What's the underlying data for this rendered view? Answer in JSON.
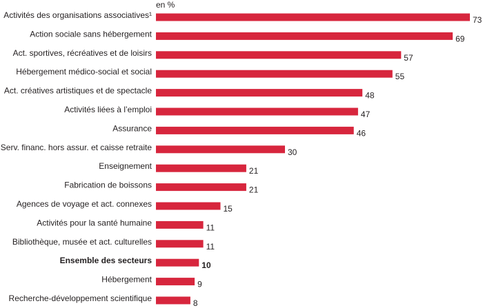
{
  "chart_data": {
    "type": "bar",
    "orientation": "horizontal",
    "unit_label": "en %",
    "bar_color": "#d7263d",
    "categories": [
      "Activités des organisations associatives¹",
      "Action sociale sans hébergement",
      "Act. sportives, récréatives et de loisirs",
      "Hébergement médico-social et social",
      "Act. créatives artistiques et de spectacle",
      "Activités liées à l’emploi",
      "Assurance",
      "Serv. financ. hors assur. et caisse retraite",
      "Enseignement",
      "Fabrication de boissons",
      "Agences de voyage et act. connexes",
      "Activités pour la santé humaine",
      "Bibliothèque, musée et act. culturelles",
      "Ensemble des secteurs",
      "Hébergement",
      "Recherche-développement scientifique"
    ],
    "values": [
      73,
      69,
      57,
      55,
      48,
      47,
      46,
      30,
      21,
      21,
      15,
      11,
      11,
      10,
      9,
      8
    ],
    "value_labels": [
      "73",
      "69",
      "57",
      "55",
      "48",
      "47",
      "46",
      "30",
      "21",
      "21",
      "15",
      "11",
      "11",
      "10",
      "9",
      "8"
    ],
    "highlighted": [
      "Ensemble des secteurs"
    ],
    "xlim": [
      0,
      73
    ]
  }
}
